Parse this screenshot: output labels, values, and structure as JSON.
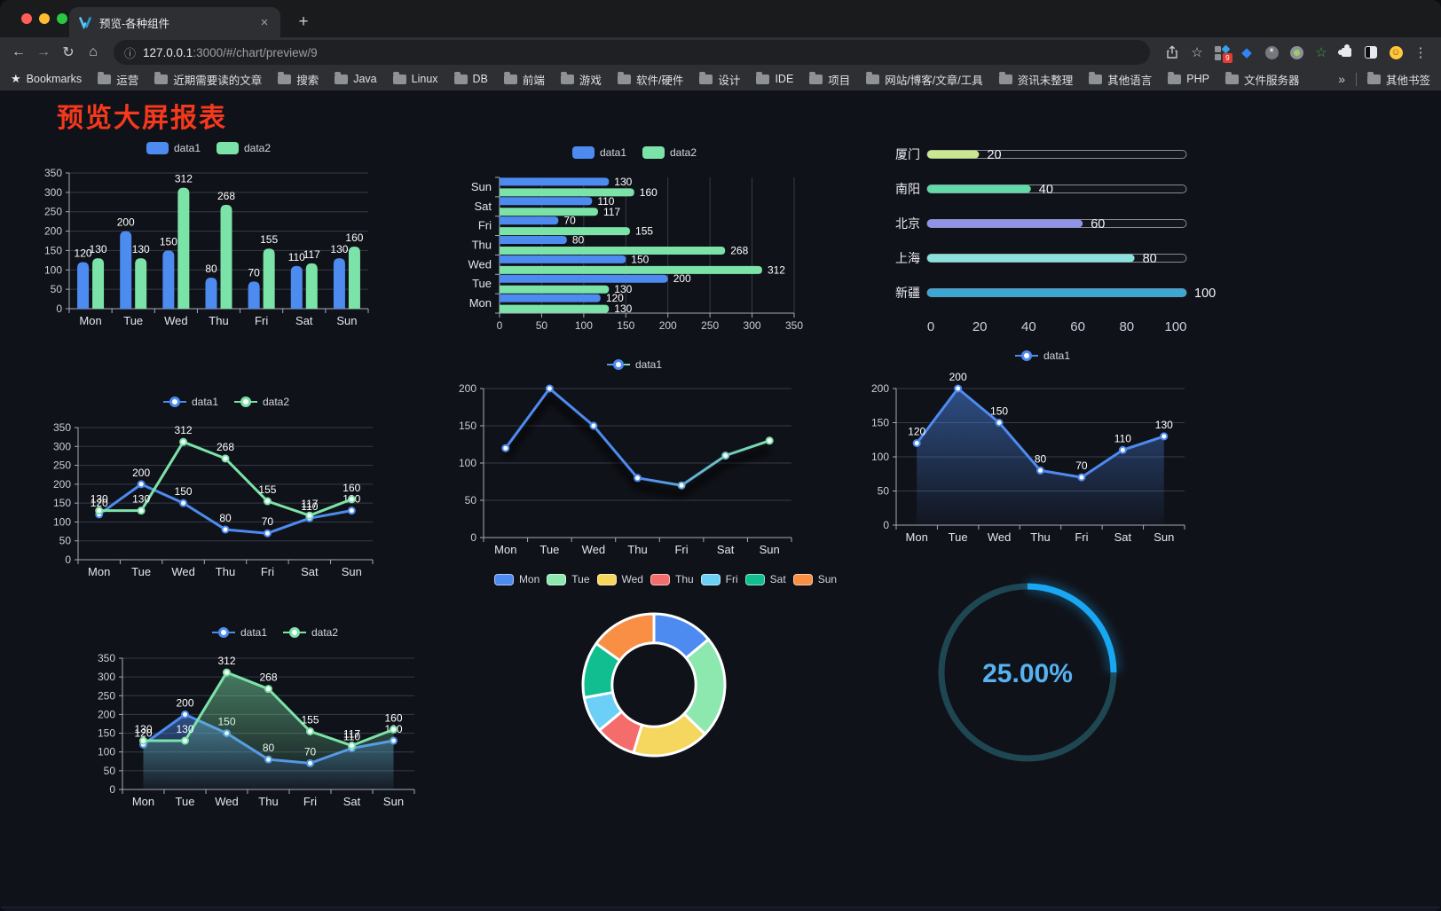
{
  "browser": {
    "tab": {
      "title": "预览-各种组件"
    },
    "icons": {
      "close": "×",
      "new_tab": "+",
      "back": "←",
      "forward": "→",
      "reload": "↻",
      "home": "⌂",
      "info": "ⓘ",
      "star": "☆",
      "menu": "⋮"
    },
    "url": {
      "host": "127.0.0.1",
      "rest": ":3000/#/chart/preview/9"
    },
    "bookmarks_label": "Bookmarks",
    "bookmarks": [
      "运营",
      "近期需要读的文章",
      "搜索",
      "Java",
      "Linux",
      "DB",
      "前端",
      "游戏",
      "软件/硬件",
      "设计",
      "IDE",
      "项目",
      "网站/博客/文章/工具",
      "资讯未整理",
      "其他语言",
      "PHP",
      "文件服务器"
    ],
    "bookmarks_overflow": "»",
    "other_bookmarks": "其他书签",
    "extensions": [
      {
        "kind": "squares",
        "name": "ext-squares-icon",
        "badge": "9"
      },
      {
        "kind": "gem",
        "name": "ext-gem-icon"
      },
      {
        "kind": "circle-dark",
        "name": "ext-dark-circle-icon"
      },
      {
        "kind": "circle-green",
        "name": "ext-green-circle-icon"
      },
      {
        "kind": "star-green",
        "name": "ext-green-star-icon"
      },
      {
        "kind": "puzzle",
        "name": "extensions-puzzle-icon"
      },
      {
        "kind": "contrast",
        "name": "ext-contrast-icon"
      },
      {
        "kind": "emoji",
        "name": "ext-emoji-icon"
      }
    ]
  },
  "page": {
    "title": "预览大屏报表",
    "title_color": "#F5391C"
  },
  "chart_data": [
    {
      "id": "c1",
      "type": "bar",
      "legend_position": "top",
      "grid": true,
      "categories": [
        "Mon",
        "Tue",
        "Wed",
        "Thu",
        "Fri",
        "Sat",
        "Sun"
      ],
      "series": [
        {
          "name": "data1",
          "color": "#4D8BF0",
          "values": [
            120,
            200,
            150,
            80,
            70,
            110,
            130
          ]
        },
        {
          "name": "data2",
          "color": "#7CE3A8",
          "values": [
            130,
            130,
            312,
            268,
            155,
            117,
            160
          ]
        }
      ],
      "ylim": [
        0,
        350
      ],
      "ytick_step": 50
    },
    {
      "id": "c2",
      "type": "bar-horizontal",
      "legend_position": "top",
      "invert_y": true,
      "grid": true,
      "categories": [
        "Mon",
        "Tue",
        "Wed",
        "Thu",
        "Fri",
        "Sat",
        "Sun"
      ],
      "series": [
        {
          "name": "data1",
          "color": "#4D8BF0",
          "values": [
            120,
            200,
            150,
            80,
            70,
            110,
            130
          ]
        },
        {
          "name": "data2",
          "color": "#7CE3A8",
          "values": [
            130,
            130,
            312,
            268,
            155,
            117,
            160
          ]
        }
      ],
      "xlim": [
        0,
        350
      ],
      "xtick_step": 50
    },
    {
      "id": "c3",
      "type": "progress",
      "max": 100,
      "xticks": [
        0,
        20,
        40,
        60,
        80,
        100
      ],
      "items": [
        {
          "label": "厦门",
          "value": 20,
          "color": "#C9E88F"
        },
        {
          "label": "南阳",
          "value": 40,
          "color": "#63D9A6"
        },
        {
          "label": "北京",
          "value": 60,
          "color": "#9193E8"
        },
        {
          "label": "上海",
          "value": 80,
          "color": "#8BE0DE"
        },
        {
          "label": "新疆",
          "value": 100,
          "color": "#3CA7D4"
        }
      ]
    },
    {
      "id": "c4",
      "type": "line",
      "legend_position": "top",
      "show_labels": true,
      "grid": true,
      "categories": [
        "Mon",
        "Tue",
        "Wed",
        "Thu",
        "Fri",
        "Sat",
        "Sun"
      ],
      "series": [
        {
          "name": "data1",
          "color": "#4D8BF0",
          "values": [
            120,
            200,
            150,
            80,
            70,
            110,
            130
          ]
        },
        {
          "name": "data2",
          "color": "#7CE3A8",
          "values": [
            130,
            130,
            312,
            268,
            155,
            117,
            160
          ]
        }
      ],
      "ylim": [
        0,
        350
      ],
      "ytick_step": 50
    },
    {
      "id": "c5",
      "type": "line",
      "legend_position": "top",
      "show_labels": false,
      "grid": true,
      "categories": [
        "Mon",
        "Tue",
        "Wed",
        "Thu",
        "Fri",
        "Sat",
        "Sun"
      ],
      "series": [
        {
          "name": "data1",
          "color": "#4D8BF0",
          "color_end": "#7CE3A8",
          "gradient": true,
          "shadow": true,
          "values": [
            120,
            200,
            150,
            80,
            70,
            110,
            130
          ]
        }
      ],
      "ylim": [
        0,
        200
      ],
      "ytick_step": 50
    },
    {
      "id": "c6",
      "type": "line",
      "legend_position": "top",
      "show_labels": true,
      "grid": true,
      "categories": [
        "Mon",
        "Tue",
        "Wed",
        "Thu",
        "Fri",
        "Sat",
        "Sun"
      ],
      "series": [
        {
          "name": "data1",
          "color": "#4D8BF0",
          "area": true,
          "values": [
            120,
            200,
            150,
            80,
            70,
            110,
            130
          ]
        }
      ],
      "ylim": [
        0,
        200
      ],
      "ytick_step": 50
    },
    {
      "id": "c7",
      "type": "line",
      "legend_position": "top",
      "show_labels": true,
      "grid": true,
      "categories": [
        "Mon",
        "Tue",
        "Wed",
        "Thu",
        "Fri",
        "Sat",
        "Sun"
      ],
      "series": [
        {
          "name": "data1",
          "color": "#4D8BF0",
          "area": true,
          "values": [
            120,
            200,
            150,
            80,
            70,
            110,
            130
          ]
        },
        {
          "name": "data2",
          "color": "#7CE3A8",
          "area": true,
          "values": [
            130,
            130,
            312,
            268,
            155,
            117,
            160
          ]
        }
      ],
      "ylim": [
        0,
        350
      ],
      "ytick_step": 50
    },
    {
      "id": "c8",
      "type": "pie",
      "legend_position": "top",
      "inner_radius_ratio": 0.59,
      "items": [
        {
          "label": "Mon",
          "value": 120,
          "color": "#4D8BF0"
        },
        {
          "label": "Tue",
          "value": 200,
          "color": "#8CE8AE"
        },
        {
          "label": "Wed",
          "value": 150,
          "color": "#F5D65E"
        },
        {
          "label": "Thu",
          "value": 80,
          "color": "#F56C6C"
        },
        {
          "label": "Fri",
          "value": 70,
          "color": "#6CCFF5"
        },
        {
          "label": "Sat",
          "value": 110,
          "color": "#10BE8F"
        },
        {
          "label": "Sun",
          "value": 130,
          "color": "#F98E45"
        }
      ]
    },
    {
      "id": "c9",
      "type": "gauge",
      "value": 25,
      "max": 100,
      "label": "25.00%",
      "color": "#19A6F2",
      "track_color": "#1E4752",
      "text_color": "#57B2F2"
    }
  ]
}
